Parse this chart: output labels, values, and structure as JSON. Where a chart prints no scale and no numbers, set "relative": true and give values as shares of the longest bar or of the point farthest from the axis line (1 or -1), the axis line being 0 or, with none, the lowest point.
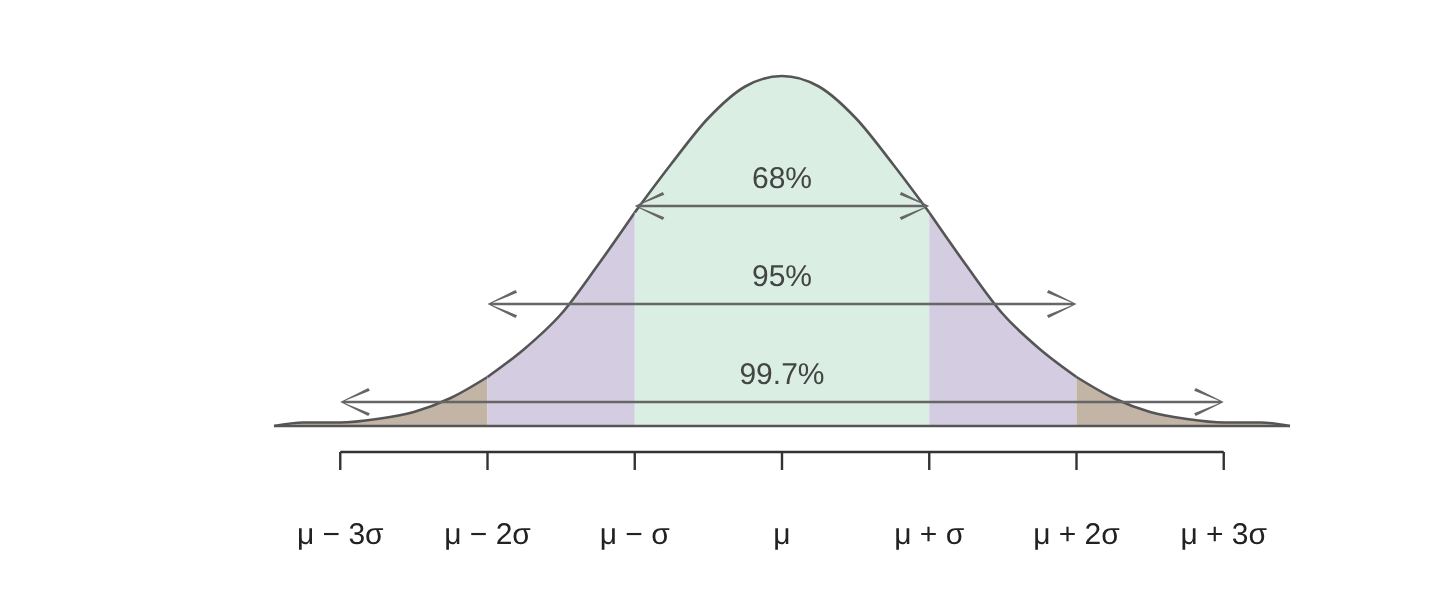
{
  "chart_data": {
    "type": "area",
    "relative": true,
    "xlim": [
      -3.45,
      3.45
    ],
    "xticks": [
      {
        "value": -3,
        "label": "μ − 3σ"
      },
      {
        "value": -2,
        "label": "μ − 2σ"
      },
      {
        "value": -1,
        "label": "μ − σ"
      },
      {
        "value": 0,
        "label": "μ"
      },
      {
        "value": 1,
        "label": "μ + σ"
      },
      {
        "value": 2,
        "label": "μ + 2σ"
      },
      {
        "value": 3,
        "label": "μ + 3σ"
      }
    ],
    "series": [
      {
        "color": "#c3b5a6",
        "x": [
          -3.45,
          -3.25,
          -3,
          -2.75,
          -2.5,
          -2.25,
          -2
        ],
        "values": [
          0,
          0.01,
          0.01,
          0.02,
          0.04,
          0.08,
          0.14
        ]
      },
      {
        "color": "#d4cce1",
        "x": [
          -2,
          -1.75,
          -1.5,
          -1.25,
          -1
        ],
        "values": [
          0.14,
          0.22,
          0.32,
          0.46,
          0.61
        ]
      },
      {
        "color": "#daeee4",
        "x": [
          -1,
          -0.75,
          -0.5,
          -0.25,
          0,
          0.25,
          0.5,
          0.75,
          1
        ],
        "values": [
          0.61,
          0.75,
          0.88,
          0.97,
          1,
          0.97,
          0.88,
          0.75,
          0.61
        ]
      },
      {
        "color": "#d4cce1",
        "x": [
          1,
          1.25,
          1.5,
          1.75,
          2
        ],
        "values": [
          0.61,
          0.46,
          0.32,
          0.22,
          0.14
        ]
      },
      {
        "color": "#c3b5a6",
        "x": [
          2,
          2.25,
          2.5,
          2.75,
          3,
          3.25,
          3.45
        ],
        "values": [
          0.14,
          0.08,
          0.04,
          0.02,
          0.01,
          0.01,
          0
        ]
      }
    ],
    "annotations": [
      "68%",
      "95%",
      "99.7%"
    ]
  }
}
